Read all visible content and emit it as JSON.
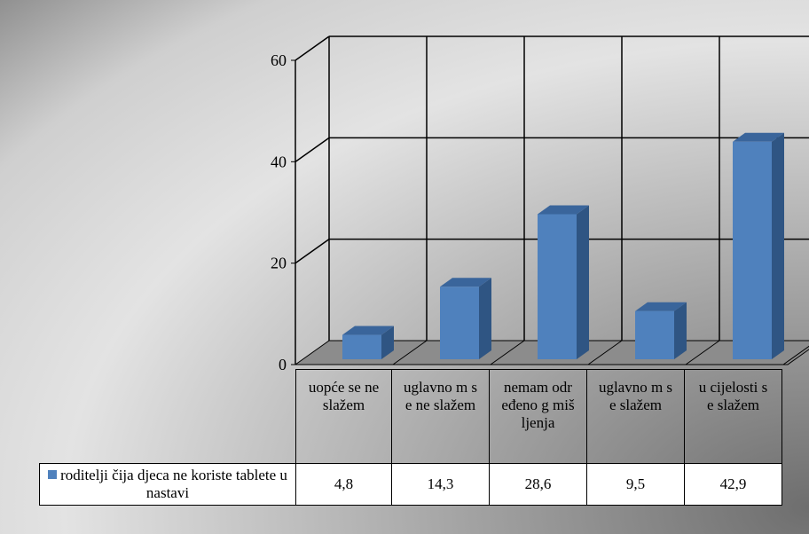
{
  "chart_data": {
    "type": "bar",
    "style": "3d-column",
    "categories": [
      "uopće se ne slažem",
      "uglavno m se ne slažem",
      "nemam određeno g mišljenja",
      "uglavno m se slažem",
      "u cijelosti se slažem"
    ],
    "series": [
      {
        "name": "roditelji čija djeca ne koriste tablete u nastavi",
        "values": [
          4.8,
          14.3,
          28.6,
          9.5,
          42.9
        ],
        "color": "#4f81bd"
      }
    ],
    "value_labels": [
      "4,8",
      "14,3",
      "28,6",
      "9,5",
      "42,9"
    ],
    "y_ticks": [
      "0",
      "20",
      "40",
      "60"
    ],
    "ylim": [
      0,
      60
    ],
    "grid": true,
    "legend": "data-table"
  }
}
